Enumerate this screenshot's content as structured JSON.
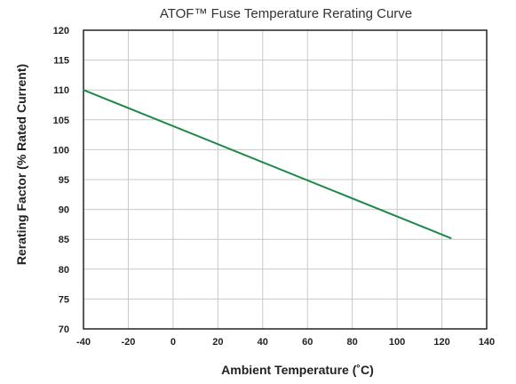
{
  "chart_data": {
    "type": "line",
    "title": "ATOF™ Fuse Temperature Rerating Curve",
    "xlabel": "Ambient Temperature (˚C)",
    "ylabel": "Rerating Factor (% Rated Current)",
    "xlim": [
      -40,
      140
    ],
    "ylim": [
      70,
      120
    ],
    "x_ticks": [
      "-40",
      "-20",
      "0",
      "20",
      "40",
      "60",
      "80",
      "100",
      "120",
      "140"
    ],
    "y_ticks": [
      "70",
      "75",
      "80",
      "85",
      "90",
      "95",
      "100",
      "105",
      "110",
      "115",
      "120"
    ],
    "grid": true,
    "legend": "none",
    "series": [
      {
        "color": "#1a8a4a",
        "x": [
          -40,
          124
        ],
        "y": [
          110,
          85.2
        ]
      }
    ]
  }
}
